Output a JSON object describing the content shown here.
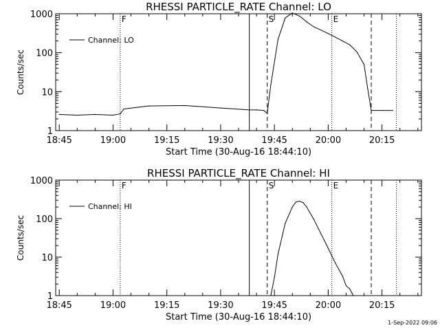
{
  "footer_timestamp": "1-Sep-2022 09:06",
  "chart_data": [
    {
      "type": "line",
      "title": "RHESSI PARTICLE_RATE Channel: LO",
      "xlabel": "Start Time (30-Aug-16 18:44:10)",
      "ylabel": "Counts/sec",
      "y_scale": "log",
      "ylim": [
        1,
        1000
      ],
      "yticks": [
        "1",
        "10",
        "100",
        "1000"
      ],
      "xlim": [
        "18:44",
        "20:26"
      ],
      "xticks": [
        "18:45",
        "19:00",
        "19:15",
        "19:30",
        "19:45",
        "20:00",
        "20:15"
      ],
      "legend": {
        "entries": [
          "Channel: LO"
        ],
        "placement": "top-left"
      },
      "markers": [
        {
          "label": "F",
          "time": "19:02",
          "style": "dotted"
        },
        {
          "label": "",
          "time": "19:38",
          "style": "solid"
        },
        {
          "label": "S",
          "time": "19:43",
          "style": "dashed"
        },
        {
          "label": "E",
          "time": "20:01",
          "style": "dotted"
        },
        {
          "label": "",
          "time": "20:12",
          "style": "dashed"
        },
        {
          "label": "",
          "time": "20:19",
          "style": "dotted"
        }
      ],
      "series": [
        {
          "name": "Channel: LO",
          "x": [
            "18:45",
            "18:50",
            "18:55",
            "19:00",
            "19:02",
            "19:03",
            "19:10",
            "19:20",
            "19:30",
            "19:38",
            "19:40",
            "19:42",
            "19:43",
            "19:44",
            "19:46",
            "19:48",
            "19:50",
            "19:52",
            "19:54",
            "19:56",
            "19:58",
            "20:00",
            "20:02",
            "20:04",
            "20:06",
            "20:08",
            "20:10",
            "20:11",
            "20:12",
            "20:15",
            "20:18"
          ],
          "y": [
            2.6,
            2.5,
            2.6,
            2.5,
            2.7,
            3.6,
            4.3,
            4.4,
            3.8,
            3.4,
            3.4,
            3.3,
            2.8,
            15,
            220,
            780,
            1050,
            870,
            620,
            460,
            380,
            310,
            250,
            200,
            160,
            105,
            50,
            12,
            3.3,
            3.3,
            3.3
          ]
        }
      ]
    },
    {
      "type": "line",
      "title": "RHESSI PARTICLE_RATE Channel: HI",
      "xlabel": "Start Time (30-Aug-16 18:44:10)",
      "ylabel": "Counts/sec",
      "y_scale": "log",
      "ylim": [
        1,
        1000
      ],
      "yticks": [
        "1",
        "10",
        "100",
        "1000"
      ],
      "xlim": [
        "18:44",
        "20:26"
      ],
      "xticks": [
        "18:45",
        "19:00",
        "19:15",
        "19:30",
        "19:45",
        "20:00",
        "20:15"
      ],
      "legend": {
        "entries": [
          "Channel: HI"
        ],
        "placement": "top-left"
      },
      "markers": [
        {
          "label": "F",
          "time": "19:02",
          "style": "dotted"
        },
        {
          "label": "",
          "time": "19:38",
          "style": "solid"
        },
        {
          "label": "S",
          "time": "19:43",
          "style": "dashed"
        },
        {
          "label": "E",
          "time": "20:01",
          "style": "dotted"
        },
        {
          "label": "",
          "time": "20:12",
          "style": "dashed"
        },
        {
          "label": "",
          "time": "20:19",
          "style": "dotted"
        }
      ],
      "series": [
        {
          "name": "Channel: HI",
          "x": [
            "19:44",
            "19:45",
            "19:46",
            "19:48",
            "19:50",
            "19:51",
            "19:52",
            "19:53",
            "19:54",
            "19:56",
            "19:58",
            "20:00",
            "20:02",
            "20:04",
            "20:05",
            "20:06",
            "20:07"
          ],
          "y": [
            1,
            3,
            12,
            75,
            200,
            270,
            285,
            260,
            200,
            95,
            40,
            17,
            7,
            3.2,
            1.8,
            1.5,
            1.0
          ]
        }
      ]
    }
  ]
}
